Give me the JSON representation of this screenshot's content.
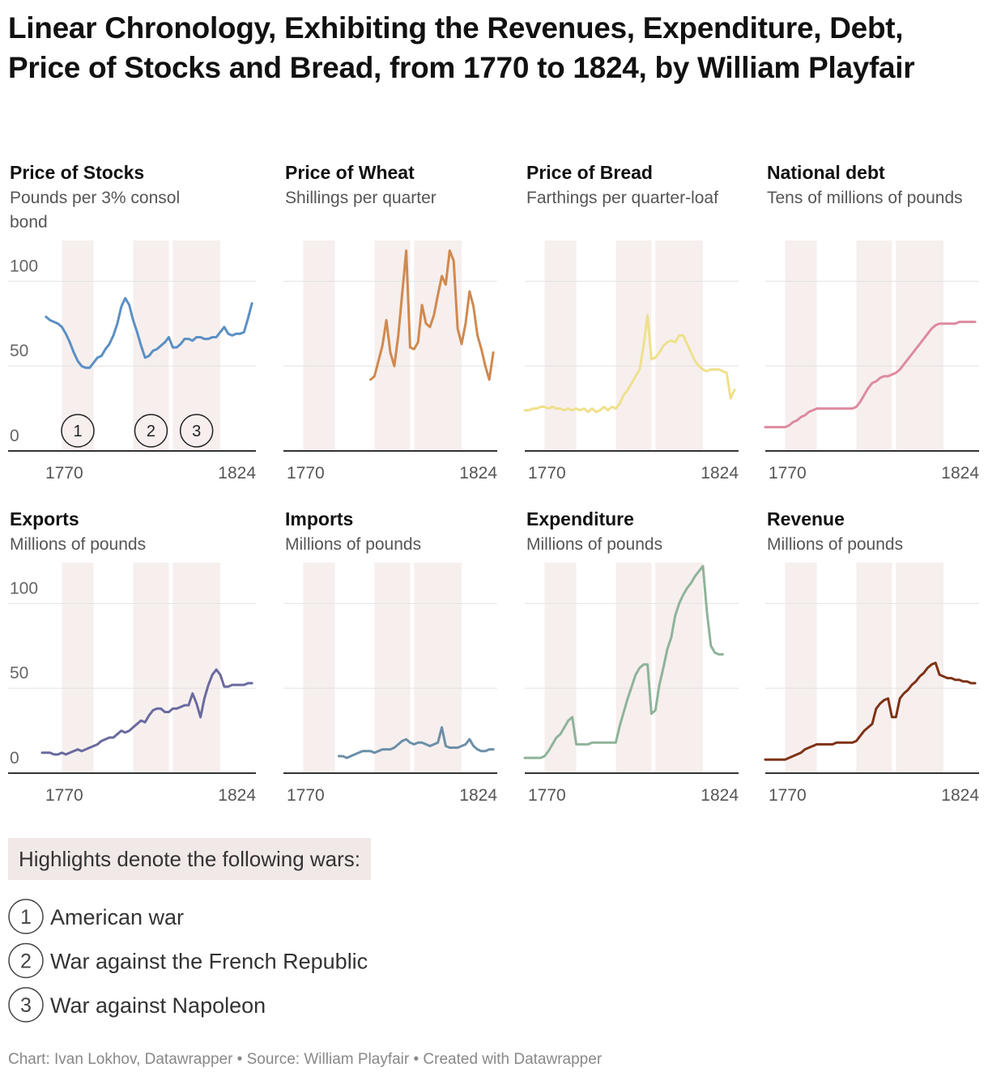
{
  "title": "Linear Chronology, Exhibiting the Revenues, Expenditure, Debt, Price of Stocks and Bread, from 1770 to 1824, by William Playfair",
  "legend_title": "Highlights denote the following wars:",
  "wars": [
    {
      "number": "1",
      "label": "American war",
      "years": [
        1775,
        1783
      ]
    },
    {
      "number": "2",
      "label": "War against the French Republic",
      "years": [
        1793,
        1802
      ]
    },
    {
      "number": "3",
      "label": "War against Napoleon",
      "years": [
        1803,
        1815
      ]
    }
  ],
  "footer": "Chart: Ivan Lokhov, Datawrapper • Source: William Playfair • Created with Datawrapper",
  "chart_data": [
    {
      "type": "line",
      "title": "Price of Stocks",
      "subtitle": "Pounds per 3% consol bond",
      "color": "#5b8fc4",
      "show_ytick_labels": true,
      "annotate_wars": true,
      "xlim": [
        1770,
        1824
      ],
      "xticks": [
        1770,
        1824
      ],
      "ylim": [
        0,
        124
      ],
      "yticks": [
        0,
        50,
        100
      ],
      "x": [
        1771,
        1772,
        1773,
        1774,
        1775,
        1776,
        1777,
        1778,
        1779,
        1780,
        1781,
        1782,
        1783,
        1784,
        1785,
        1786,
        1787,
        1788,
        1789,
        1790,
        1791,
        1792,
        1793,
        1794,
        1795,
        1796,
        1797,
        1798,
        1799,
        1800,
        1801,
        1802,
        1803,
        1804,
        1805,
        1806,
        1807,
        1808,
        1809,
        1810,
        1811,
        1812,
        1813,
        1814,
        1815,
        1816,
        1817,
        1818,
        1819,
        1820,
        1821,
        1822,
        1823
      ],
      "values": [
        79,
        77,
        76,
        75,
        73,
        69,
        64,
        58,
        53,
        50,
        49,
        49,
        52,
        55,
        56,
        60,
        63,
        68,
        75,
        85,
        90,
        86,
        77,
        70,
        62,
        55,
        56,
        59,
        60,
        62,
        64,
        67,
        61,
        61,
        63,
        66,
        66,
        65,
        67,
        67,
        66,
        66,
        67,
        67,
        70,
        73,
        69,
        68,
        69,
        69,
        70,
        78,
        87
      ]
    },
    {
      "type": "line",
      "title": "Price of Wheat",
      "subtitle": "Shillings per quarter",
      "color": "#d0894e",
      "show_ytick_labels": false,
      "annotate_wars": false,
      "xlim": [
        1770,
        1824
      ],
      "xticks": [
        1770,
        1824
      ],
      "ylim": [
        0,
        124
      ],
      "yticks": [
        0,
        50,
        100
      ],
      "x": [
        1792,
        1793,
        1794,
        1795,
        1796,
        1797,
        1798,
        1799,
        1800,
        1801,
        1802,
        1803,
        1804,
        1805,
        1806,
        1807,
        1808,
        1809,
        1810,
        1811,
        1812,
        1813,
        1814,
        1815,
        1816,
        1817,
        1818,
        1819,
        1820,
        1821,
        1822,
        1823
      ],
      "values": [
        42,
        44,
        53,
        62,
        77,
        58,
        50,
        68,
        93,
        118,
        61,
        60,
        64,
        86,
        75,
        73,
        80,
        92,
        103,
        98,
        118,
        112,
        72,
        63,
        75,
        94,
        85,
        68,
        60,
        50,
        42,
        58
      ]
    },
    {
      "type": "line",
      "title": "Price of Bread",
      "subtitle": "Farthings per quarter-loaf",
      "color": "#efe08c",
      "show_ytick_labels": false,
      "annotate_wars": false,
      "xlim": [
        1770,
        1824
      ],
      "xticks": [
        1770,
        1824
      ],
      "ylim": [
        0,
        124
      ],
      "yticks": [
        0,
        50,
        100
      ],
      "x": [
        1770,
        1771,
        1772,
        1773,
        1774,
        1775,
        1776,
        1777,
        1778,
        1779,
        1780,
        1781,
        1782,
        1783,
        1784,
        1785,
        1786,
        1787,
        1788,
        1789,
        1790,
        1791,
        1792,
        1793,
        1794,
        1795,
        1796,
        1797,
        1798,
        1799,
        1800,
        1801,
        1802,
        1803,
        1804,
        1805,
        1806,
        1807,
        1808,
        1809,
        1810,
        1811,
        1812,
        1813,
        1814,
        1815,
        1816,
        1817,
        1818,
        1819,
        1820,
        1821,
        1822,
        1823
      ],
      "values": [
        24,
        24,
        25,
        25,
        26,
        26,
        25,
        26,
        25,
        25,
        24,
        25,
        24,
        25,
        24,
        25,
        23,
        25,
        23,
        24,
        26,
        24,
        26,
        25,
        28,
        33,
        36,
        40,
        44,
        48,
        62,
        80,
        54,
        55,
        58,
        62,
        64,
        65,
        64,
        68,
        68,
        63,
        58,
        53,
        50,
        48,
        47,
        48,
        48,
        48,
        47,
        46,
        31,
        36
      ]
    },
    {
      "type": "line",
      "title": "National debt",
      "subtitle": "Tens of millions of pounds",
      "color": "#de8aa0",
      "show_ytick_labels": false,
      "annotate_wars": false,
      "xlim": [
        1770,
        1824
      ],
      "xticks": [
        1770,
        1824
      ],
      "ylim": [
        0,
        124
      ],
      "yticks": [
        0,
        50,
        100
      ],
      "x": [
        1770,
        1771,
        1772,
        1773,
        1774,
        1775,
        1776,
        1777,
        1778,
        1779,
        1780,
        1781,
        1782,
        1783,
        1784,
        1785,
        1786,
        1787,
        1788,
        1789,
        1790,
        1791,
        1792,
        1793,
        1794,
        1795,
        1796,
        1797,
        1798,
        1799,
        1800,
        1801,
        1802,
        1803,
        1804,
        1805,
        1806,
        1807,
        1808,
        1809,
        1810,
        1811,
        1812,
        1813,
        1814,
        1815,
        1816,
        1817,
        1818,
        1819,
        1820,
        1821,
        1822,
        1823
      ],
      "values": [
        14,
        14,
        14,
        14,
        14,
        14,
        15,
        17,
        18,
        20,
        21,
        23,
        24,
        25,
        25,
        25,
        25,
        25,
        25,
        25,
        25,
        25,
        25,
        26,
        29,
        33,
        37,
        40,
        41,
        43,
        44,
        44,
        45,
        46,
        48,
        51,
        54,
        57,
        60,
        63,
        66,
        69,
        72,
        74,
        75,
        75,
        75,
        75,
        75,
        76,
        76,
        76,
        76,
        76
      ]
    },
    {
      "type": "line",
      "title": "Exports",
      "subtitle": "Millions of pounds",
      "color": "#6a6aa0",
      "show_ytick_labels": true,
      "annotate_wars": false,
      "xlim": [
        1770,
        1824
      ],
      "xticks": [
        1770,
        1824
      ],
      "ylim": [
        0,
        124
      ],
      "yticks": [
        0,
        50,
        100
      ],
      "x": [
        1770,
        1771,
        1772,
        1773,
        1774,
        1775,
        1776,
        1777,
        1778,
        1779,
        1780,
        1781,
        1782,
        1783,
        1784,
        1785,
        1786,
        1787,
        1788,
        1789,
        1790,
        1791,
        1792,
        1793,
        1794,
        1795,
        1796,
        1797,
        1798,
        1799,
        1800,
        1801,
        1802,
        1803,
        1804,
        1805,
        1806,
        1807,
        1808,
        1809,
        1810,
        1811,
        1812,
        1813,
        1814,
        1815,
        1816,
        1817,
        1818,
        1819,
        1820,
        1821,
        1822,
        1823
      ],
      "values": [
        12,
        12,
        12,
        11,
        11,
        12,
        11,
        12,
        13,
        14,
        13,
        14,
        15,
        16,
        17,
        19,
        20,
        21,
        21,
        23,
        25,
        24,
        25,
        27,
        29,
        31,
        30,
        34,
        37,
        38,
        38,
        36,
        36,
        38,
        38,
        39,
        40,
        40,
        47,
        41,
        33,
        44,
        52,
        58,
        61,
        58,
        51,
        51,
        52,
        52,
        52,
        52,
        53,
        53
      ]
    },
    {
      "type": "line",
      "title": "Imports",
      "subtitle": "Millions of pounds",
      "color": "#6b8fa8",
      "show_ytick_labels": false,
      "annotate_wars": false,
      "xlim": [
        1770,
        1824
      ],
      "xticks": [
        1770,
        1824
      ],
      "ylim": [
        0,
        124
      ],
      "yticks": [
        0,
        50,
        100
      ],
      "x": [
        1784,
        1785,
        1786,
        1787,
        1788,
        1789,
        1790,
        1791,
        1792,
        1793,
        1794,
        1795,
        1796,
        1797,
        1798,
        1799,
        1800,
        1801,
        1802,
        1803,
        1804,
        1805,
        1806,
        1807,
        1808,
        1809,
        1810,
        1811,
        1812,
        1813,
        1814,
        1815,
        1816,
        1817,
        1818,
        1819,
        1820,
        1821,
        1822,
        1823
      ],
      "values": [
        10,
        10,
        9,
        10,
        11,
        12,
        13,
        13,
        13,
        12,
        13,
        14,
        14,
        14,
        15,
        17,
        19,
        20,
        18,
        17,
        18,
        18,
        17,
        16,
        17,
        18,
        27,
        16,
        15,
        15,
        15,
        16,
        17,
        20,
        16,
        14,
        13,
        13,
        14,
        14
      ]
    },
    {
      "type": "line",
      "title": "Expenditure",
      "subtitle": "Millions of pounds",
      "color": "#8fb39a",
      "show_ytick_labels": false,
      "annotate_wars": false,
      "xlim": [
        1770,
        1824
      ],
      "xticks": [
        1770,
        1824
      ],
      "ylim": [
        0,
        124
      ],
      "yticks": [
        0,
        50,
        100
      ],
      "x": [
        1770,
        1771,
        1772,
        1773,
        1774,
        1775,
        1776,
        1777,
        1778,
        1779,
        1780,
        1781,
        1782,
        1783,
        1784,
        1785,
        1786,
        1787,
        1788,
        1789,
        1790,
        1791,
        1792,
        1793,
        1794,
        1795,
        1796,
        1797,
        1798,
        1799,
        1800,
        1801,
        1802,
        1803,
        1804,
        1805,
        1806,
        1807,
        1808,
        1809,
        1810,
        1811,
        1812,
        1813,
        1814,
        1815,
        1816,
        1817,
        1818,
        1819,
        1820
      ],
      "values": [
        9,
        9,
        9,
        9,
        9,
        10,
        13,
        17,
        21,
        23,
        27,
        31,
        33,
        17,
        17,
        17,
        17,
        18,
        18,
        18,
        18,
        18,
        18,
        18,
        28,
        36,
        44,
        51,
        58,
        62,
        64,
        64,
        35,
        37,
        52,
        62,
        73,
        80,
        93,
        100,
        105,
        109,
        112,
        116,
        119,
        122,
        95,
        75,
        71,
        70,
        70
      ]
    },
    {
      "type": "line",
      "title": "Revenue",
      "subtitle": "Millions of pounds",
      "color": "#7f3216",
      "show_ytick_labels": false,
      "annotate_wars": false,
      "xlim": [
        1770,
        1824
      ],
      "xticks": [
        1770,
        1824
      ],
      "ylim": [
        0,
        124
      ],
      "yticks": [
        0,
        50,
        100
      ],
      "x": [
        1770,
        1771,
        1772,
        1773,
        1774,
        1775,
        1776,
        1777,
        1778,
        1779,
        1780,
        1781,
        1782,
        1783,
        1784,
        1785,
        1786,
        1787,
        1788,
        1789,
        1790,
        1791,
        1792,
        1793,
        1794,
        1795,
        1796,
        1797,
        1798,
        1799,
        1800,
        1801,
        1802,
        1803,
        1804,
        1805,
        1806,
        1807,
        1808,
        1809,
        1810,
        1811,
        1812,
        1813,
        1814,
        1815,
        1816,
        1817,
        1818,
        1819,
        1820,
        1821,
        1822,
        1823
      ],
      "values": [
        8,
        8,
        8,
        8,
        8,
        8,
        9,
        10,
        11,
        12,
        14,
        15,
        16,
        17,
        17,
        17,
        17,
        17,
        18,
        18,
        18,
        18,
        18,
        19,
        22,
        25,
        27,
        29,
        38,
        41,
        43,
        44,
        33,
        33,
        44,
        47,
        49,
        52,
        54,
        57,
        59,
        62,
        64,
        65,
        58,
        57,
        56,
        56,
        55,
        55,
        54,
        54,
        53,
        53
      ]
    }
  ]
}
